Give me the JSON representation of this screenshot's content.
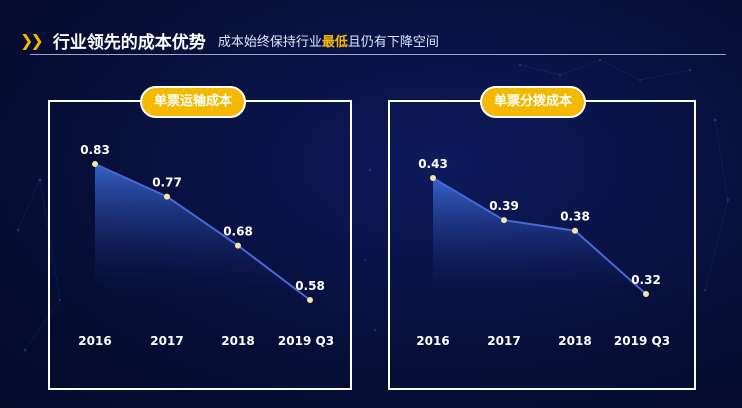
{
  "header": {
    "title": "行业领先的成本优势",
    "subtitle_pre": "成本始终保持行业",
    "subtitle_highlight": "最低",
    "subtitle_post": "且仍有下降空间"
  },
  "colors": {
    "accent": "#f5b800",
    "line": "#4a67d8",
    "point": "#f3e6a6"
  },
  "chart_data": [
    {
      "type": "area",
      "title": "单票运输成本",
      "categories": [
        "2016",
        "2017",
        "2018",
        "2019 Q3"
      ],
      "values": [
        0.83,
        0.77,
        0.68,
        0.58
      ],
      "data_labels": [
        "0.83",
        "0.77",
        "0.68",
        "0.58"
      ],
      "xlabel": "",
      "ylabel": "",
      "grid": false
    },
    {
      "type": "area",
      "title": "单票分拨成本",
      "categories": [
        "2016",
        "2017",
        "2018",
        "2019 Q3"
      ],
      "values": [
        0.43,
        0.39,
        0.38,
        0.32
      ],
      "data_labels": [
        "0.43",
        "0.39",
        "0.38",
        "0.32"
      ],
      "xlabel": "",
      "ylabel": "",
      "grid": false
    }
  ]
}
